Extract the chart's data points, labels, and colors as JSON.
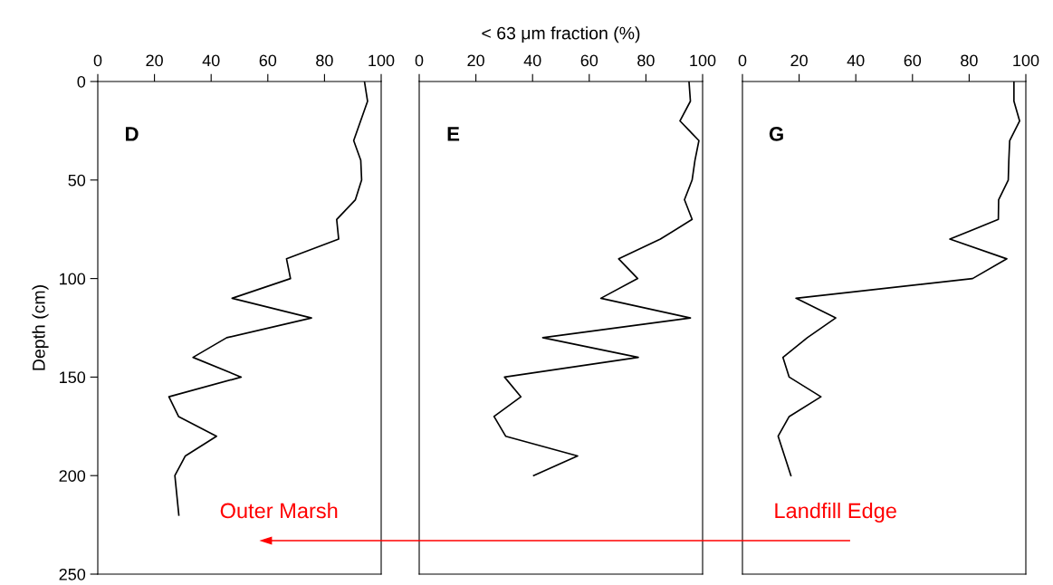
{
  "chart_data": [
    {
      "type": "line",
      "title": "D",
      "ylabel": "Depth (cm)",
      "xlim": [
        0,
        100
      ],
      "xticks": [
        0,
        20,
        40,
        60,
        80,
        100
      ],
      "ylim": [
        250,
        0
      ],
      "yticks": [
        0,
        50,
        100,
        150,
        200,
        250
      ],
      "grid": false,
      "legend": false,
      "marker": "none",
      "line_style": "solid",
      "annotations": [
        "Outer Marsh"
      ],
      "series": [
        {
          "color": "#000000",
          "x": [
            94.1,
            95.2,
            90.3,
            92.8,
            93.1,
            90.9,
            84.3,
            85.0,
            66.6,
            68.0,
            47.4,
            75.4,
            45.5,
            33.6,
            50.6,
            25.1,
            28.5,
            41.9,
            30.9,
            27.2,
            28.6
          ],
          "values": [
            0,
            10,
            30,
            40,
            50,
            60,
            70,
            80,
            90,
            100,
            110,
            120,
            130,
            140,
            150,
            160,
            170,
            180,
            190,
            200,
            220
          ]
        }
      ]
    },
    {
      "type": "line",
      "title": "E",
      "xlabel": "< 63 μm fraction (%)",
      "xlim": [
        0,
        100
      ],
      "xticks": [
        0,
        20,
        40,
        60,
        80,
        100
      ],
      "ylim": [
        250,
        0
      ],
      "tick_labels": "x",
      "grid": false,
      "legend": false,
      "marker": "none",
      "line_style": "solid",
      "series": [
        {
          "color": "#000000",
          "x": [
            95.2,
            95.7,
            92.0,
            98.7,
            97.3,
            96.3,
            93.6,
            96.3,
            85.1,
            70.4,
            77.1,
            64.1,
            95.7,
            43.6,
            77.3,
            30.1,
            35.9,
            26.4,
            30.5,
            55.9,
            40.4
          ],
          "values": [
            0,
            10,
            20,
            30,
            40,
            50,
            60,
            70,
            80,
            90,
            100,
            110,
            120,
            130,
            140,
            150,
            160,
            170,
            180,
            190,
            200
          ]
        }
      ]
    },
    {
      "type": "line",
      "title": "G",
      "xlim": [
        0,
        100
      ],
      "xticks": [
        0,
        20,
        40,
        60,
        80,
        100
      ],
      "ylim": [
        250,
        0
      ],
      "tick_labels": "x",
      "grid": false,
      "legend": false,
      "marker": "none",
      "line_style": "solid",
      "annotations": [
        "Landfill Edge"
      ],
      "series": [
        {
          "color": "#000000",
          "x": [
            95.8,
            95.8,
            97.8,
            94.3,
            94.0,
            93.8,
            90.4,
            90.3,
            73.2,
            93.3,
            81.2,
            18.9,
            32.9,
            22.9,
            14.3,
            16.5,
            27.7,
            16.5,
            12.6,
            17.1
          ],
          "values": [
            0,
            10,
            20,
            30,
            40,
            50,
            60,
            70,
            80,
            90,
            100,
            110,
            120,
            130,
            140,
            150,
            160,
            170,
            180,
            200
          ]
        }
      ]
    }
  ]
}
